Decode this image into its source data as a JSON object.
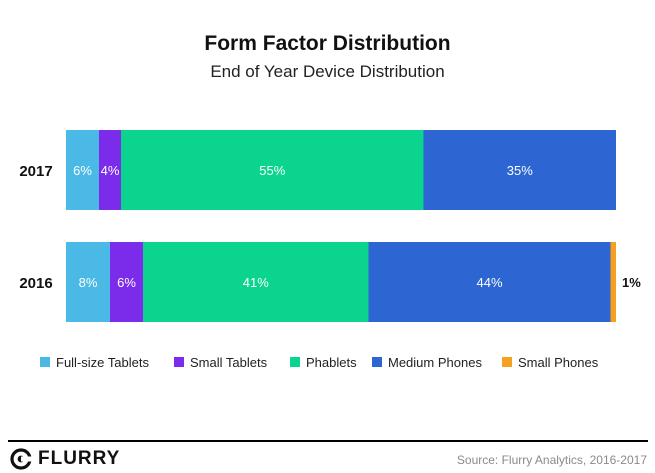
{
  "header": {
    "title": "Form Factor Distribution",
    "subtitle": "End of Year Device Distribution"
  },
  "footer": {
    "logo_text": "FLURRY",
    "source": "Source: Flurry Analytics, 2016-2017"
  },
  "colors": {
    "full_size_tablets": "#4bb9e6",
    "small_tablets": "#7b2bea",
    "phablets": "#0ad48e",
    "medium_phones": "#2d65d2",
    "small_phones": "#f5a023"
  },
  "chart_data": {
    "type": "bar",
    "orientation": "horizontal",
    "stacked": true,
    "title": "Form Factor Distribution",
    "subtitle": "End of Year Device Distribution",
    "categories": [
      "2017",
      "2016"
    ],
    "series": [
      {
        "name": "Full-size Tablets",
        "color": "#4bb9e6",
        "values": [
          6,
          8
        ],
        "labels": [
          "6%",
          "8%"
        ]
      },
      {
        "name": "Small Tablets",
        "color": "#7b2bea",
        "values": [
          4,
          6
        ],
        "labels": [
          "4%",
          "6%"
        ]
      },
      {
        "name": "Phablets",
        "color": "#0ad48e",
        "values": [
          55,
          41
        ],
        "labels": [
          "55%",
          "41%"
        ]
      },
      {
        "name": "Medium Phones",
        "color": "#2d65d2",
        "values": [
          35,
          44
        ],
        "labels": [
          "35%",
          "44%"
        ]
      },
      {
        "name": "Small Phones",
        "color": "#f5a023",
        "values": [
          0,
          1
        ],
        "labels": [
          "",
          "1%"
        ]
      }
    ],
    "xlim": [
      0,
      100
    ],
    "xlabel": "",
    "ylabel": "",
    "grid": false,
    "legend_position": "bottom"
  }
}
